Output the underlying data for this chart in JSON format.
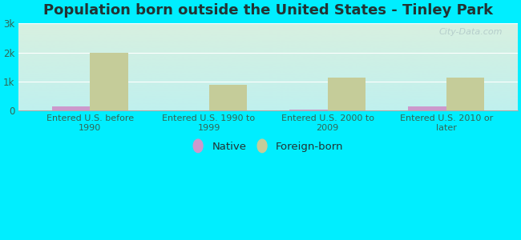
{
  "title": "Population born outside the United States - Tinley Park",
  "categories": [
    "Entered U.S. before\n1990",
    "Entered U.S. 1990 to\n1999",
    "Entered U.S. 2000 to\n2009",
    "Entered U.S. 2010 or\nlater"
  ],
  "native_values": [
    150,
    10,
    50,
    160
  ],
  "foreign_values": [
    1980,
    880,
    1150,
    1150
  ],
  "native_color": "#cc99cc",
  "foreign_color": "#c5cc99",
  "background_color": "#00eeff",
  "title_fontsize": 13,
  "tick_label_color": "#336655",
  "ylim": [
    0,
    3000
  ],
  "yticks": [
    0,
    1000,
    2000,
    3000
  ],
  "ytick_labels": [
    "0",
    "1k",
    "2k",
    "3k"
  ],
  "bar_width": 0.32,
  "watermark": "City-Data.com",
  "legend_native": "Native",
  "legend_foreign": "Foreign-born"
}
